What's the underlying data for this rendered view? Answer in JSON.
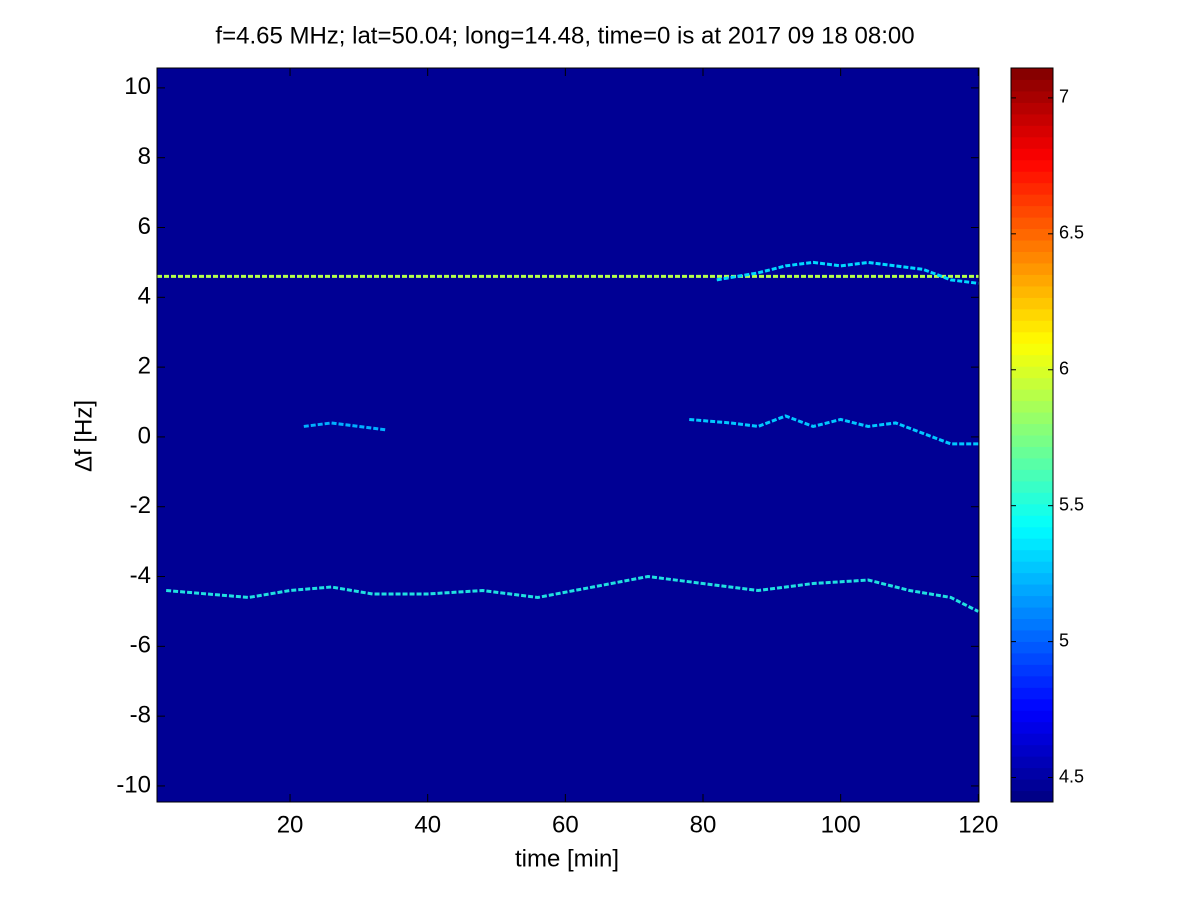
{
  "chart_data": {
    "type": "heatmap",
    "title": "f=4.65 MHz;  lat=50.04; long=14.48, time=0 is at 2017 09 18 08:00",
    "x_label": "time [min]",
    "y_label": "Δf [Hz]",
    "xlim": [
      0.67,
      120.1
    ],
    "ylim": [
      -10.46,
      10.57
    ],
    "xticks": [
      20,
      40,
      60,
      80,
      100,
      120
    ],
    "yticks": [
      -10,
      -8,
      -6,
      -4,
      -2,
      0,
      2,
      4,
      6,
      8,
      10
    ],
    "clim": [
      4.41,
      7.11
    ],
    "cticks": [
      4.5,
      5,
      5.5,
      6,
      6.5,
      7
    ],
    "colormap": "jet",
    "traces": [
      {
        "color": "#b4ff4b",
        "x": [
          0.67,
          120.1
        ],
        "y": [
          4.6,
          4.6
        ]
      },
      {
        "color": "#00d8ff",
        "x": [
          82,
          88,
          92,
          96,
          100,
          104,
          108,
          112,
          116,
          120
        ],
        "y": [
          4.5,
          4.7,
          4.9,
          5.0,
          4.9,
          5.0,
          4.9,
          4.8,
          4.5,
          4.4
        ]
      },
      {
        "color": "#00c8ff",
        "x": [
          78,
          84,
          88,
          92,
          96,
          100,
          104,
          108,
          112,
          116,
          120
        ],
        "y": [
          0.5,
          0.4,
          0.3,
          0.6,
          0.3,
          0.5,
          0.3,
          0.4,
          0.1,
          -0.2,
          -0.2
        ]
      },
      {
        "color": "#00b0ff",
        "x": [
          22,
          26,
          30,
          34
        ],
        "y": [
          0.3,
          0.4,
          0.3,
          0.2
        ]
      },
      {
        "color": "#20e0e0",
        "x": [
          2,
          8,
          14,
          20,
          26,
          32,
          40,
          48,
          56,
          64,
          72,
          80,
          88,
          96,
          104,
          110,
          116,
          120
        ],
        "y": [
          -4.4,
          -4.5,
          -4.6,
          -4.4,
          -4.3,
          -4.5,
          -4.5,
          -4.4,
          -4.6,
          -4.3,
          -4.0,
          -4.2,
          -4.4,
          -4.2,
          -4.1,
          -4.4,
          -4.6,
          -5.0
        ]
      }
    ]
  }
}
